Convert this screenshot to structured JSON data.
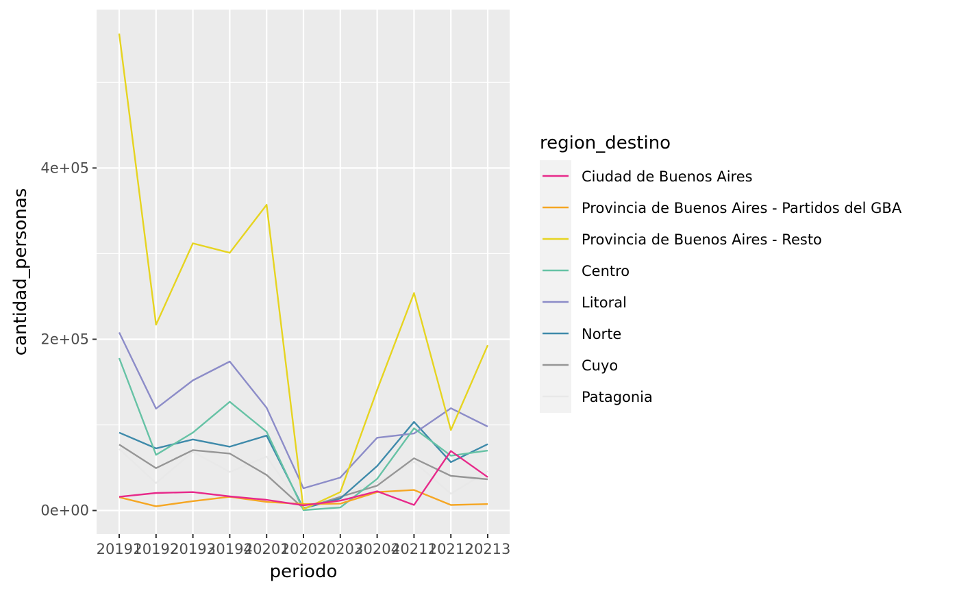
{
  "chart_data": {
    "type": "line",
    "xlabel": "periodo",
    "ylabel": "cantidad_personas",
    "categories": [
      "20191",
      "20192",
      "20193",
      "20194",
      "20201",
      "20202",
      "20203",
      "20204",
      "20211",
      "20212",
      "20213"
    ],
    "yticks": [
      {
        "value": 0,
        "label": "0e+00"
      },
      {
        "value": 200000,
        "label": "2e+05"
      },
      {
        "value": 400000,
        "label": "4e+05"
      }
    ],
    "ylim": [
      -27500,
      585000
    ],
    "grid": true,
    "legend": {
      "title": "region_destino",
      "placement": "right"
    },
    "series": [
      {
        "name": "Ciudad de Buenos Aires",
        "color": "#e7298a",
        "values": [
          16000,
          20500,
          21500,
          16500,
          12500,
          6000,
          11500,
          22500,
          6500,
          69500,
          39000
        ]
      },
      {
        "name": "Provincia de Buenos Aires - Partidos del GBA",
        "color": "#f5a623",
        "values": [
          15500,
          5000,
          11000,
          16000,
          10000,
          7500,
          8000,
          21500,
          24000,
          6500,
          7500
        ]
      },
      {
        "name": "Provincia de Buenos Aires - Resto",
        "color": "#e6d420",
        "values": [
          557000,
          217000,
          312000,
          301000,
          357000,
          1500,
          21500,
          141000,
          254000,
          94000,
          193000
        ]
      },
      {
        "name": "Centro",
        "color": "#66c2a5",
        "values": [
          178000,
          65000,
          91000,
          127000,
          92000,
          500,
          3500,
          37000,
          96000,
          64000,
          70000
        ]
      },
      {
        "name": "Litoral",
        "color": "#8c8cc8",
        "values": [
          208000,
          119000,
          152000,
          174000,
          120000,
          26000,
          38500,
          85000,
          90000,
          119500,
          98000
        ]
      },
      {
        "name": "Norte",
        "color": "#3e8aaa",
        "values": [
          91000,
          72500,
          83000,
          74500,
          87500,
          2500,
          14000,
          52000,
          103500,
          56500,
          77500
        ]
      },
      {
        "name": "Cuyo",
        "color": "#969696",
        "values": [
          77000,
          49500,
          70500,
          66500,
          41500,
          2500,
          16000,
          29000,
          61000,
          40500,
          36500
        ]
      },
      {
        "name": "Patagonia",
        "color": "#e8e8e8",
        "values": [
          72000,
          32000,
          68500,
          45000,
          63000,
          1500,
          18000,
          33000,
          57000,
          19500,
          46000
        ]
      }
    ]
  }
}
